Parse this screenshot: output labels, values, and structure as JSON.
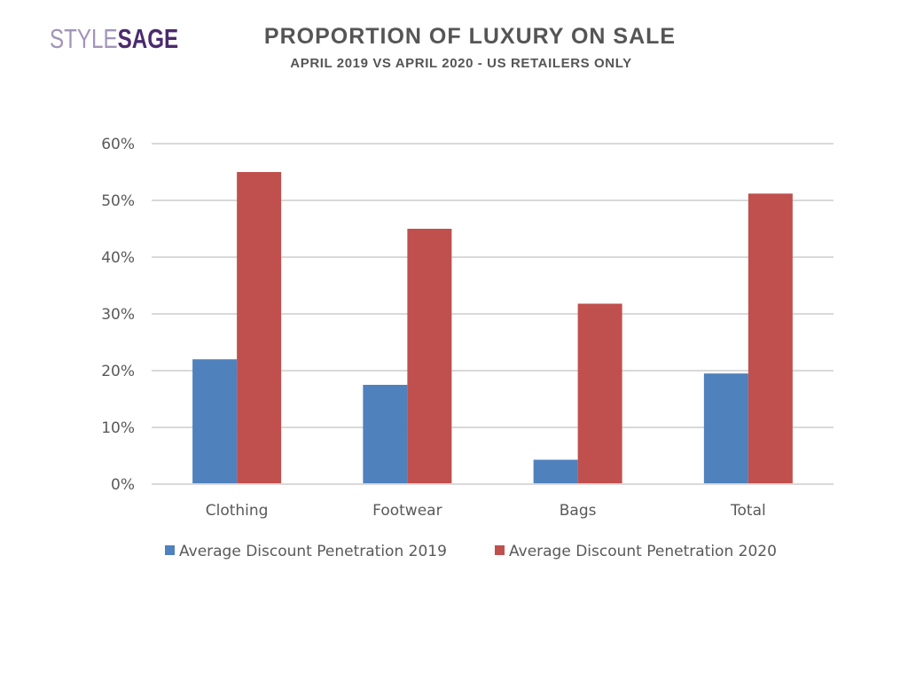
{
  "header": {
    "logo_light": "STYLE",
    "logo_bold": "SAGE",
    "title": "PROPORTION OF LUXURY ON SALE",
    "subtitle": "APRIL 2019 VS APRIL 2020 - US RETAILERS ONLY"
  },
  "colors": {
    "series_2019": "#4f81bd",
    "series_2020": "#c0504d",
    "gridline": "#d9d9d9",
    "axis_text": "#595959",
    "title_text": "#555555",
    "logo_light": "#a294b8",
    "logo_dark": "#4b2a6e"
  },
  "chart_data": {
    "type": "bar",
    "title": "PROPORTION OF LUXURY ON SALE",
    "subtitle": "APRIL 2019 VS APRIL 2020 - US RETAILERS ONLY",
    "xlabel": "",
    "ylabel": "",
    "categories": [
      "Clothing",
      "Footwear",
      "Bags",
      "Total"
    ],
    "series": [
      {
        "name": "Average Discount Penetration 2019",
        "values": [
          0.22,
          0.175,
          0.043,
          0.195
        ]
      },
      {
        "name": "Average Discount Penetration 2020",
        "values": [
          0.55,
          0.45,
          0.318,
          0.512
        ]
      }
    ],
    "ylim": [
      0,
      0.6
    ],
    "yticks": [
      0,
      0.1,
      0.2,
      0.3,
      0.4,
      0.5,
      0.6
    ],
    "ytick_labels": [
      "0%",
      "10%",
      "20%",
      "30%",
      "40%",
      "50%",
      "60%"
    ],
    "grid": true,
    "legend_position": "bottom"
  }
}
